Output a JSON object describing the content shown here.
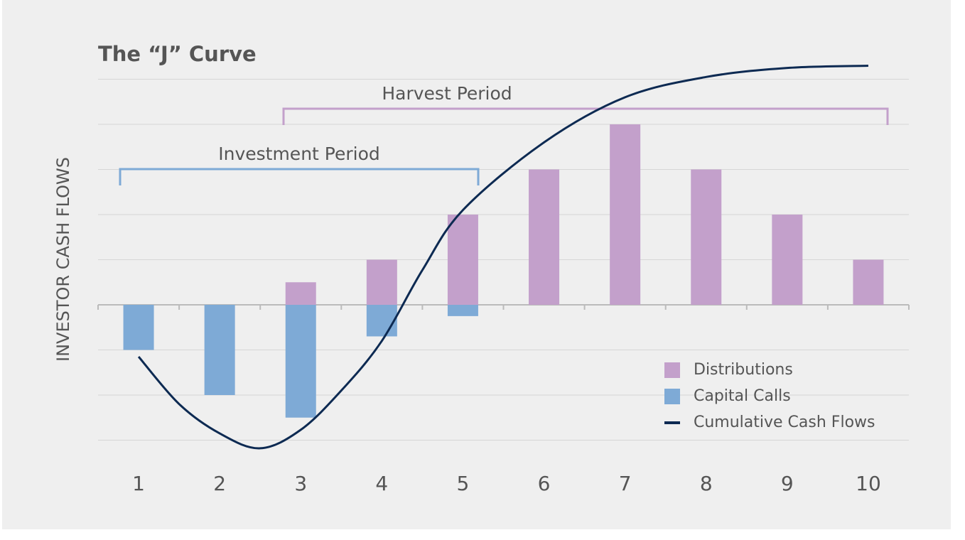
{
  "chart_data": {
    "type": "bar",
    "title": "The “J” Curve",
    "y_label": "INVESTOR CASH FLOWS",
    "categories": [
      "1",
      "2",
      "3",
      "4",
      "5",
      "6",
      "7",
      "8",
      "9",
      "10"
    ],
    "series": [
      {
        "name": "Distributions",
        "color": "#c3a0cb",
        "values": [
          null,
          null,
          0.5,
          1,
          2,
          3,
          4,
          3,
          2,
          1
        ]
      },
      {
        "name": "Capital Calls",
        "color": "#7eaad6",
        "values": [
          -1,
          -2,
          -2.5,
          -0.7,
          -0.25,
          null,
          null,
          null,
          null,
          null
        ]
      },
      {
        "name": "Cumulative Cash Flows",
        "type": "line",
        "color": "#0d2a52",
        "x": [
          1,
          1.5,
          2,
          2.5,
          3,
          3.5,
          4,
          4.5,
          5,
          6,
          7,
          8,
          9,
          10
        ],
        "values": [
          -1.15,
          -2.2,
          -2.85,
          -3.18,
          -2.77,
          -1.9,
          -0.8,
          0.77,
          2.1,
          3.6,
          4.6,
          5.05,
          5.25,
          5.3
        ]
      }
    ],
    "xlim": [
      0.5,
      10.5
    ],
    "ylim": [
      -3.4,
      5.5
    ],
    "gridlines": [
      -3,
      -2,
      -1,
      0,
      1,
      2,
      3,
      4,
      5
    ],
    "annotations": [
      "Harvest Period",
      "Investment Period"
    ],
    "legend": "lower right"
  }
}
